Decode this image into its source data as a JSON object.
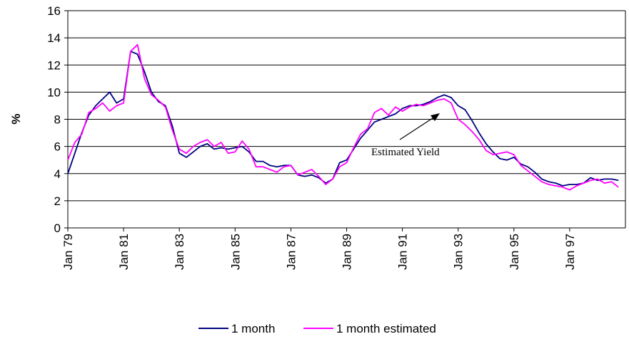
{
  "chart_data": {
    "type": "line",
    "y_label": "%",
    "annotation": "Estimated Yield",
    "categories": [
      "Jan 79",
      null,
      null,
      null,
      null,
      null,
      null,
      null,
      "Jan 81",
      null,
      null,
      null,
      null,
      null,
      null,
      null,
      "Jan 83",
      null,
      null,
      null,
      null,
      null,
      null,
      null,
      "Jan 85",
      null,
      null,
      null,
      null,
      null,
      null,
      null,
      "Jan 87",
      null,
      null,
      null,
      null,
      null,
      null,
      null,
      "Jan 89",
      null,
      null,
      null,
      null,
      null,
      null,
      null,
      "Jan 91",
      null,
      null,
      null,
      null,
      null,
      null,
      null,
      "Jan 93",
      null,
      null,
      null,
      null,
      null,
      null,
      null,
      "Jan 95",
      null,
      null,
      null,
      null,
      null,
      null,
      null,
      "Jan 97",
      null,
      null,
      null,
      null,
      null,
      null,
      null
    ],
    "series": [
      {
        "name": "1 month",
        "color": "#000080",
        "values": [
          4.0,
          5.5,
          7.0,
          8.3,
          9.0,
          9.5,
          10.0,
          9.2,
          9.5,
          13.0,
          12.8,
          11.5,
          10.0,
          9.3,
          9.0,
          7.5,
          5.5,
          5.2,
          5.6,
          6.0,
          6.2,
          5.8,
          5.9,
          5.8,
          5.9,
          6.0,
          5.6,
          4.9,
          4.9,
          4.6,
          4.5,
          4.6,
          4.6,
          3.9,
          3.8,
          3.9,
          3.7,
          3.3,
          3.6,
          4.8,
          5.0,
          5.8,
          6.6,
          7.2,
          7.8,
          8.0,
          8.2,
          8.4,
          8.8,
          9.0,
          9.0,
          9.1,
          9.3,
          9.6,
          9.8,
          9.6,
          9.0,
          8.7,
          7.9,
          7.0,
          6.2,
          5.6,
          5.1,
          5.0,
          5.2,
          4.7,
          4.5,
          4.1,
          3.6,
          3.4,
          3.3,
          3.1,
          3.2,
          3.2,
          3.3,
          3.7,
          3.5,
          3.6,
          3.6,
          3.5
        ]
      },
      {
        "name": "1 month estimated",
        "color": "#ff00ff",
        "values": [
          5.0,
          6.3,
          6.9,
          8.5,
          8.8,
          9.2,
          8.6,
          9.0,
          9.2,
          13.0,
          13.5,
          11.0,
          9.8,
          9.4,
          8.9,
          7.2,
          5.8,
          5.5,
          6.0,
          6.3,
          6.5,
          6.0,
          6.3,
          5.5,
          5.6,
          6.4,
          5.8,
          4.5,
          4.5,
          4.3,
          4.1,
          4.5,
          4.6,
          3.9,
          4.1,
          4.3,
          3.8,
          3.2,
          3.6,
          4.5,
          4.8,
          5.9,
          6.9,
          7.3,
          8.5,
          8.8,
          8.3,
          8.9,
          8.6,
          8.9,
          9.1,
          9.0,
          9.2,
          9.4,
          9.5,
          9.2,
          8.0,
          7.6,
          7.1,
          6.5,
          5.7,
          5.4,
          5.5,
          5.6,
          5.4,
          4.6,
          4.2,
          3.8,
          3.4,
          3.2,
          3.1,
          3.0,
          2.8,
          3.1,
          3.3,
          3.5,
          3.6,
          3.3,
          3.4,
          3.0
        ]
      }
    ],
    "ylim": [
      0,
      16
    ],
    "yticks": [
      0,
      2,
      4,
      6,
      8,
      10,
      12,
      14,
      16
    ],
    "grid": true
  }
}
